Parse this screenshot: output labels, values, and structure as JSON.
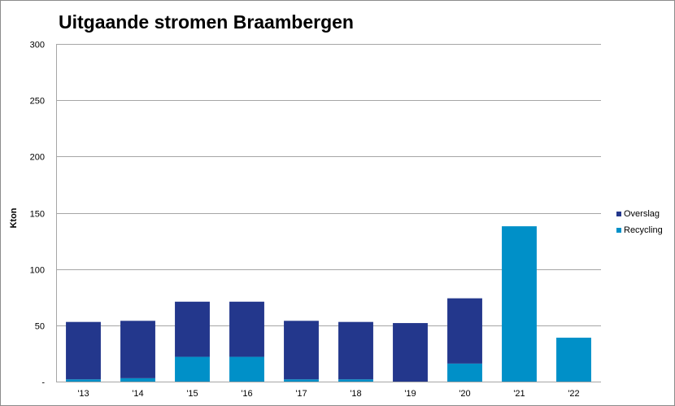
{
  "chart_data": {
    "type": "bar",
    "stacked": true,
    "title": "Uitgaande stromen Braambergen",
    "xlabel": "",
    "ylabel": "Kton",
    "ylim": [
      0,
      300
    ],
    "yticks": [
      0,
      50,
      100,
      150,
      200,
      250,
      300
    ],
    "ytick_labels": [
      "-",
      "50",
      "100",
      "150",
      "200",
      "250",
      "300"
    ],
    "grid": true,
    "legend_position": "right",
    "categories": [
      "'13",
      "'14",
      "'15",
      "'16",
      "'17",
      "'18",
      "'19",
      "'20",
      "'21",
      "'22"
    ],
    "series": [
      {
        "name": "Recycling",
        "color": "#0090c8",
        "values": [
          2,
          3,
          22,
          22,
          2,
          2,
          0,
          16,
          138,
          39
        ]
      },
      {
        "name": "Overslag",
        "color": "#23378c",
        "values": [
          51,
          51,
          49,
          49,
          52,
          51,
          52,
          58,
          0,
          0
        ]
      }
    ],
    "legend_order": [
      "Overslag",
      "Recycling"
    ]
  }
}
